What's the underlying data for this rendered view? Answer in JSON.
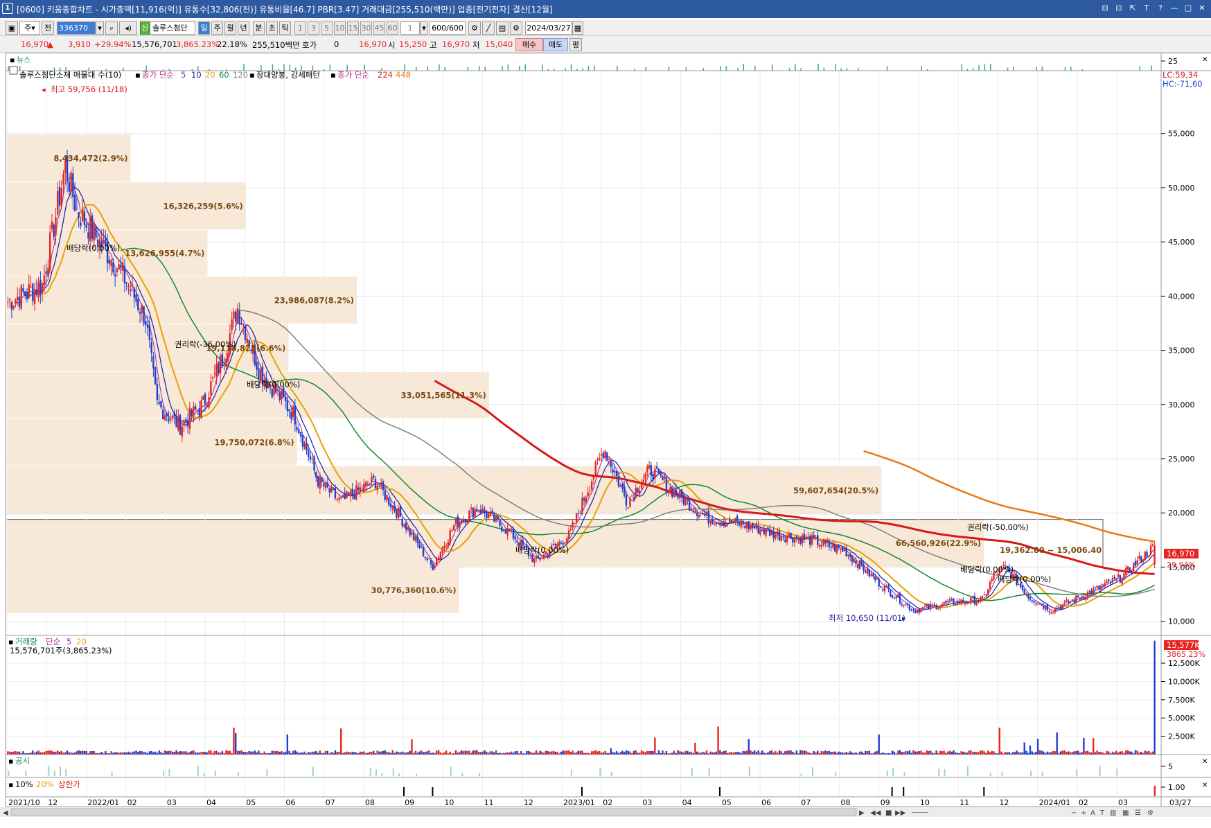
{
  "window": {
    "badge": "1",
    "title": "[0600] 키움종합차트 - 시가총액[11,916(억)] 유통수[32,806(천)] 유통비율[46.7] PBR[3.47] 거래대금[255,510(백만)] 업종[전기전자] 결산[12월]",
    "buttons": [
      "⊟",
      "⊡",
      "⇱",
      "T",
      "?",
      "—",
      "□",
      "✕"
    ]
  },
  "toolbar": {
    "period_select": "주",
    "all_button": "전",
    "code_input": "336370",
    "credit_badge": "신",
    "stock_name": "솔루스첨단",
    "period_buttons": [
      "일",
      "주",
      "월",
      "년",
      "분",
      "초",
      "틱"
    ],
    "active_period": "일",
    "interval_buttons": [
      "1",
      "3",
      "5",
      "10",
      "15",
      "30",
      "45",
      "60"
    ],
    "interval_value": "1",
    "count_value": "600/600",
    "date_value": "2024/03/27"
  },
  "quote": {
    "price": "16,970",
    "change": "3,910",
    "change_pct": "+29.94%",
    "volume": "15,576,701",
    "volume_ratio": "3,865.23%",
    "turnover_pct": "22.18%",
    "trade_value": "255,510백만",
    "hoga_label": "호가",
    "hoga_value": "0",
    "hoga_price": "16,970",
    "open_label": "시",
    "open": "15,250",
    "high_label": "고",
    "high": "16,970",
    "low_label": "저",
    "low": "15,040",
    "buy_button": "매수",
    "sell_button": "매도",
    "eval_button": "평"
  },
  "news_pane": {
    "label": "뉴스",
    "axis_tick": "25"
  },
  "price_pane": {
    "legend": [
      {
        "text": "솔루스첨단소재 매물대 수(10)",
        "color": "#000000"
      },
      {
        "text": "종가 단순",
        "color": "#b0308a"
      },
      {
        "text": "5",
        "color": "#8b2fb3"
      },
      {
        "text": "10",
        "color": "#1a1aa0"
      },
      {
        "text": "20",
        "color": "#e6a200"
      },
      {
        "text": "60",
        "color": "#0e8a2e"
      },
      {
        "text": "120",
        "color": "#808080"
      },
      {
        "text": "장대양봉, 강세패턴",
        "color": "#000000"
      },
      {
        "text": "종가 단순",
        "color": "#b0308a"
      },
      {
        "text": "224",
        "color": "#d81818"
      },
      {
        "text": "448",
        "color": "#e87a10"
      }
    ],
    "lc_label": "LC:59,34",
    "hc_label": "HC:-71,60",
    "current_price": "16,970",
    "current_pct": "29.94%",
    "high_annotation": "최고 59,756 (11/18)",
    "low_annotation": "최저 10,650 (11/01)",
    "event_labels": [
      "배당락(0.00%)",
      "권리락(-36.00%)",
      "배당락(0.00%)",
      "배당락(0.00%)",
      "권리락(-50.00%)",
      "배당락(0.00%)",
      "배당락(0.00%)"
    ],
    "range_note": "19,362.80 ~ 15,006.40"
  },
  "volume_pane": {
    "legend_label": "거래량",
    "legend_ma": "단순",
    "legend_5": "5",
    "legend_20": "20",
    "volume_text": "15,576,701주(3,865.23%)",
    "current_label": "15,577K",
    "current_pct": "3865.23%"
  },
  "disclosure_pane": {
    "label": "공시",
    "axis_tick": "5"
  },
  "limit_pane": {
    "legend": [
      "10%",
      "20%",
      "상한가"
    ],
    "axis_tick": "1.00"
  },
  "colors": {
    "up": "#e8231e",
    "down": "#1f3fd1",
    "ma5": "#8b2fb3",
    "ma10": "#1a1aa0",
    "ma20": "#e6a200",
    "ma60": "#0e8a2e",
    "ma120": "#808080",
    "ma224": "#d81818",
    "ma448": "#e87a10",
    "volume_profile": "#f7e8d7"
  },
  "chart_data": {
    "type": "candlestick",
    "x_tick_labels": [
      "2021/10",
      "12",
      "2022/01",
      "02",
      "03",
      "04",
      "05",
      "06",
      "07",
      "08",
      "09",
      "10",
      "11",
      "12",
      "2023/01",
      "02",
      "03",
      "04",
      "05",
      "06",
      "07",
      "08",
      "09",
      "10",
      "11",
      "12",
      "2024/01",
      "02",
      "03",
      "03/27"
    ],
    "y_ticks": [
      10000,
      15000,
      20000,
      25000,
      30000,
      35000,
      40000,
      45000,
      50000,
      55000
    ],
    "y_tick_labels": [
      "10,000",
      "15,000",
      "20,000",
      "25,000",
      "30,000",
      "35,000",
      "40,000",
      "45,000",
      "50,000",
      "55,000"
    ],
    "ylim": [
      8700,
      60800
    ],
    "volume_y_ticks": [
      2500,
      5000,
      7500,
      10000,
      12500
    ],
    "volume_y_tick_labels": [
      "2,500K",
      "5,000K",
      "7,500K",
      "10,000K",
      "12,500K"
    ],
    "volume_ylim": [
      0,
      16300
    ],
    "volume_profile": [
      {
        "label": "8,434,472(2.9%)",
        "low": 50500,
        "high": 54900
      },
      {
        "label": "16,326,259(5.6%)",
        "low": 46100,
        "high": 50500
      },
      {
        "label": "13,626,955(4.7%)",
        "low": 41800,
        "high": 46100
      },
      {
        "label": "23,986,087(8.2%)",
        "low": 37400,
        "high": 41800
      },
      {
        "label": "19,118,825(6.6%)",
        "low": 33000,
        "high": 37400
      },
      {
        "label": "33,051,565(11.3%)",
        "low": 28700,
        "high": 33000
      },
      {
        "label": "19,750,072(6.8%)",
        "low": 24300,
        "high": 28700
      },
      {
        "label": "59,607,654(20.5%)",
        "low": 19800,
        "high": 24300
      },
      {
        "label": "66,560,926(22.9%)",
        "low": 15000,
        "high": 19400
      },
      {
        "label": "30,776,360(10.6%)",
        "low": 10700,
        "high": 15000
      }
    ],
    "price_path_control": [
      [
        0.0,
        39500
      ],
      [
        0.03,
        41000
      ],
      [
        0.05,
        52000
      ],
      [
        0.06,
        48000
      ],
      [
        0.08,
        45000
      ],
      [
        0.1,
        42000
      ],
      [
        0.12,
        38000
      ],
      [
        0.13,
        30000
      ],
      [
        0.15,
        28000
      ],
      [
        0.17,
        30000
      ],
      [
        0.19,
        35000
      ],
      [
        0.2,
        39000
      ],
      [
        0.22,
        33000
      ],
      [
        0.25,
        29000
      ],
      [
        0.27,
        23000
      ],
      [
        0.29,
        21000
      ],
      [
        0.32,
        23000
      ],
      [
        0.34,
        20000
      ],
      [
        0.37,
        15000
      ],
      [
        0.39,
        19000
      ],
      [
        0.41,
        20500
      ],
      [
        0.44,
        18000
      ],
      [
        0.46,
        15500
      ],
      [
        0.49,
        18000
      ],
      [
        0.52,
        26000
      ],
      [
        0.54,
        21000
      ],
      [
        0.56,
        24000
      ],
      [
        0.58,
        22000
      ],
      [
        0.61,
        19500
      ],
      [
        0.64,
        19000
      ],
      [
        0.67,
        18000
      ],
      [
        0.7,
        17500
      ],
      [
        0.73,
        16500
      ],
      [
        0.76,
        13500
      ],
      [
        0.79,
        11000
      ],
      [
        0.82,
        11700
      ],
      [
        0.85,
        12000
      ],
      [
        0.86,
        14300
      ],
      [
        0.87,
        15000
      ],
      [
        0.89,
        12300
      ],
      [
        0.91,
        11000
      ],
      [
        0.94,
        12500
      ],
      [
        0.97,
        14000
      ],
      [
        1.0,
        16970
      ]
    ],
    "last_candle": {
      "open": 15250,
      "high": 16970,
      "low": 15040,
      "close": 16970,
      "volume": 15577
    }
  }
}
